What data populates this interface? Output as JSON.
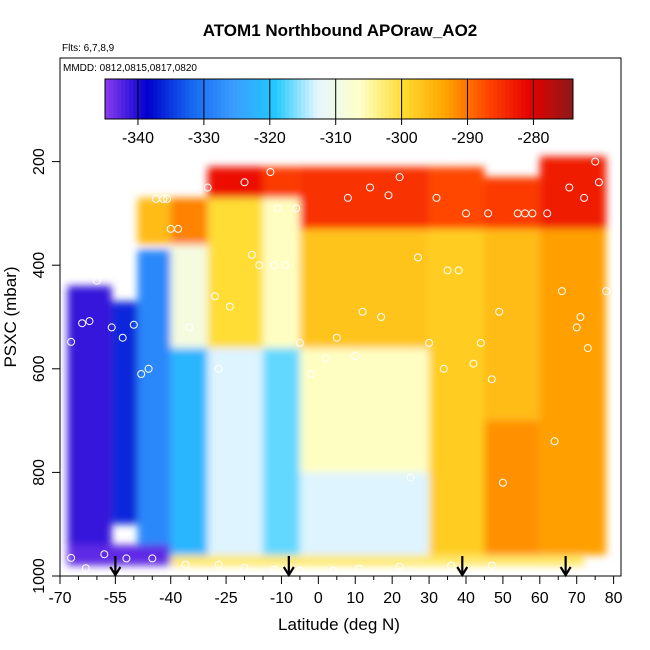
{
  "chart_data": {
    "type": "heatmap",
    "title": "ATOM1 Northbound APOraw_AO2",
    "annotations": [
      "Flts: 6,7,8,9",
      "MMDD: 0812,0815,0817,0820"
    ],
    "xlabel": "Latitude (deg N)",
    "ylabel": "PSXC (mbar)",
    "xlim": [
      -70,
      82
    ],
    "ylim": [
      1000,
      0
    ],
    "x_ticks": [
      -70,
      -55,
      -40,
      -25,
      -10,
      0,
      10,
      20,
      30,
      40,
      50,
      60,
      70,
      80
    ],
    "x_ticklabels": [
      "-70",
      "-55",
      "-40",
      "-25",
      "-10",
      "0",
      "10",
      "20",
      "30",
      "40",
      "50",
      "60",
      "70",
      "80"
    ],
    "x_minor_ticks": [
      -65,
      -60,
      -50,
      -45,
      -35,
      -30,
      -20,
      -15,
      -5,
      5,
      15,
      25,
      35,
      45,
      55,
      65,
      75
    ],
    "y_ticks": [
      200,
      400,
      600,
      800,
      1000
    ],
    "y_ticklabels": [
      "200",
      "400",
      "600",
      "800",
      "1000"
    ],
    "colorbar": {
      "vmin": -345,
      "vmax": -274,
      "ticks": [
        -340,
        -330,
        -320,
        -310,
        -300,
        -290,
        -280
      ],
      "ticklabels": [
        "-340",
        "-330",
        "-320",
        "-310",
        "-300",
        "-290",
        "-280"
      ],
      "colors": [
        "#8a3cf0",
        "#0000cd",
        "#1565f0",
        "#3a9cff",
        "#22c8ff",
        "#e6f6ff",
        "#ffffc8",
        "#ffdc32",
        "#ffa500",
        "#ff4500",
        "#e60000",
        "#8b1a1a"
      ]
    },
    "profile_latitudes": [
      -55,
      -8,
      39,
      67
    ],
    "regions": [
      {
        "lat_min": -68,
        "lat_max": -56,
        "p_top": 440,
        "p_bot": 980,
        "value": -341
      },
      {
        "lat_min": -56,
        "lat_max": -49,
        "p_top": 470,
        "p_bot": 900,
        "value": -336
      },
      {
        "lat_min": -49,
        "lat_max": -40,
        "p_top": 370,
        "p_bot": 960,
        "value": -328
      },
      {
        "lat_min": -68,
        "lat_max": -40,
        "p_top": 940,
        "p_bot": 980,
        "value": -343
      },
      {
        "lat_min": -49,
        "lat_max": -40,
        "p_top": 270,
        "p_bot": 360,
        "value": -296
      },
      {
        "lat_min": -40,
        "lat_max": -30,
        "p_top": 270,
        "p_bot": 360,
        "value": -291
      },
      {
        "lat_min": -40,
        "lat_max": -30,
        "p_top": 360,
        "p_bot": 560,
        "value": -309
      },
      {
        "lat_min": -40,
        "lat_max": -30,
        "p_top": 560,
        "p_bot": 960,
        "value": -322
      },
      {
        "lat_min": -30,
        "lat_max": -15,
        "p_top": 210,
        "p_bot": 270,
        "value": -282
      },
      {
        "lat_min": -30,
        "lat_max": -15,
        "p_top": 270,
        "p_bot": 560,
        "value": -300
      },
      {
        "lat_min": -30,
        "lat_max": -15,
        "p_top": 560,
        "p_bot": 960,
        "value": -313
      },
      {
        "lat_min": -15,
        "lat_max": -5,
        "p_top": 210,
        "p_bot": 270,
        "value": -286
      },
      {
        "lat_min": -15,
        "lat_max": -5,
        "p_top": 270,
        "p_bot": 560,
        "value": -306
      },
      {
        "lat_min": -15,
        "lat_max": -5,
        "p_top": 560,
        "p_bot": 960,
        "value": -317
      },
      {
        "lat_min": -5,
        "lat_max": 30,
        "p_top": 210,
        "p_bot": 330,
        "value": -285
      },
      {
        "lat_min": -5,
        "lat_max": 30,
        "p_top": 330,
        "p_bot": 560,
        "value": -297
      },
      {
        "lat_min": -5,
        "lat_max": 30,
        "p_top": 560,
        "p_bot": 800,
        "value": -306
      },
      {
        "lat_min": -5,
        "lat_max": 30,
        "p_top": 800,
        "p_bot": 960,
        "value": -313
      },
      {
        "lat_min": 30,
        "lat_max": 45,
        "p_top": 210,
        "p_bot": 330,
        "value": -287
      },
      {
        "lat_min": 30,
        "lat_max": 45,
        "p_top": 330,
        "p_bot": 960,
        "value": -298
      },
      {
        "lat_min": 45,
        "lat_max": 60,
        "p_top": 230,
        "p_bot": 330,
        "value": -286
      },
      {
        "lat_min": 45,
        "lat_max": 60,
        "p_top": 330,
        "p_bot": 700,
        "value": -296
      },
      {
        "lat_min": 45,
        "lat_max": 60,
        "p_top": 700,
        "p_bot": 960,
        "value": -292
      },
      {
        "lat_min": 60,
        "lat_max": 78,
        "p_top": 190,
        "p_bot": 330,
        "value": -283
      },
      {
        "lat_min": 60,
        "lat_max": 78,
        "p_top": 330,
        "p_bot": 960,
        "value": -293
      },
      {
        "lat_min": -40,
        "lat_max": 72,
        "p_top": 960,
        "p_bot": 980,
        "value": -302
      }
    ],
    "sample_points": [
      {
        "lat": -67,
        "p": 548
      },
      {
        "lat": -64,
        "p": 512
      },
      {
        "lat": -62,
        "p": 508
      },
      {
        "lat": -60,
        "p": 430
      },
      {
        "lat": -56,
        "p": 520
      },
      {
        "lat": -53,
        "p": 540
      },
      {
        "lat": -50,
        "p": 515
      },
      {
        "lat": -48,
        "p": 610
      },
      {
        "lat": -46,
        "p": 600
      },
      {
        "lat": -44,
        "p": 272
      },
      {
        "lat": -42,
        "p": 272
      },
      {
        "lat": -41,
        "p": 272
      },
      {
        "lat": -40,
        "p": 330
      },
      {
        "lat": -38,
        "p": 330
      },
      {
        "lat": -35,
        "p": 520
      },
      {
        "lat": -30,
        "p": 250
      },
      {
        "lat": -28,
        "p": 460
      },
      {
        "lat": -27,
        "p": 600
      },
      {
        "lat": -24,
        "p": 480
      },
      {
        "lat": -20,
        "p": 240
      },
      {
        "lat": -18,
        "p": 380
      },
      {
        "lat": -16,
        "p": 400
      },
      {
        "lat": -13,
        "p": 220
      },
      {
        "lat": -12,
        "p": 400
      },
      {
        "lat": -11,
        "p": 290
      },
      {
        "lat": -9,
        "p": 400
      },
      {
        "lat": -6,
        "p": 290
      },
      {
        "lat": -5,
        "p": 550
      },
      {
        "lat": -2,
        "p": 610
      },
      {
        "lat": 2,
        "p": 580
      },
      {
        "lat": 5,
        "p": 540
      },
      {
        "lat": 8,
        "p": 270
      },
      {
        "lat": 10,
        "p": 575
      },
      {
        "lat": 12,
        "p": 490
      },
      {
        "lat": 14,
        "p": 250
      },
      {
        "lat": 17,
        "p": 500
      },
      {
        "lat": 19,
        "p": 265
      },
      {
        "lat": 22,
        "p": 230
      },
      {
        "lat": 25,
        "p": 810
      },
      {
        "lat": 27,
        "p": 385
      },
      {
        "lat": 30,
        "p": 550
      },
      {
        "lat": 32,
        "p": 270
      },
      {
        "lat": 34,
        "p": 600
      },
      {
        "lat": 35,
        "p": 410
      },
      {
        "lat": 37,
        "p": 190
      },
      {
        "lat": 38,
        "p": 410
      },
      {
        "lat": 40,
        "p": 300
      },
      {
        "lat": 42,
        "p": 590
      },
      {
        "lat": 44,
        "p": 550
      },
      {
        "lat": 46,
        "p": 300
      },
      {
        "lat": 47,
        "p": 620
      },
      {
        "lat": 49,
        "p": 490
      },
      {
        "lat": 50,
        "p": 820
      },
      {
        "lat": 54,
        "p": 300
      },
      {
        "lat": 56,
        "p": 300
      },
      {
        "lat": 58,
        "p": 300
      },
      {
        "lat": 62,
        "p": 300
      },
      {
        "lat": 64,
        "p": 740
      },
      {
        "lat": 66,
        "p": 450
      },
      {
        "lat": 68,
        "p": 250
      },
      {
        "lat": 70,
        "p": 520
      },
      {
        "lat": 71,
        "p": 500
      },
      {
        "lat": 72,
        "p": 270
      },
      {
        "lat": 73,
        "p": 560
      },
      {
        "lat": 75,
        "p": 200
      },
      {
        "lat": 76,
        "p": 240
      },
      {
        "lat": 78,
        "p": 450
      },
      {
        "lat": -67,
        "p": 965
      },
      {
        "lat": -63,
        "p": 985
      },
      {
        "lat": -58,
        "p": 958
      },
      {
        "lat": -52,
        "p": 966
      },
      {
        "lat": -45,
        "p": 966
      },
      {
        "lat": -36,
        "p": 978
      },
      {
        "lat": -27,
        "p": 978
      },
      {
        "lat": -20,
        "p": 984
      },
      {
        "lat": -12,
        "p": 988
      },
      {
        "lat": -5,
        "p": 990
      },
      {
        "lat": 4,
        "p": 990
      },
      {
        "lat": 11,
        "p": 986
      },
      {
        "lat": 22,
        "p": 982
      },
      {
        "lat": 36,
        "p": 980
      },
      {
        "lat": 47,
        "p": 980
      }
    ]
  }
}
